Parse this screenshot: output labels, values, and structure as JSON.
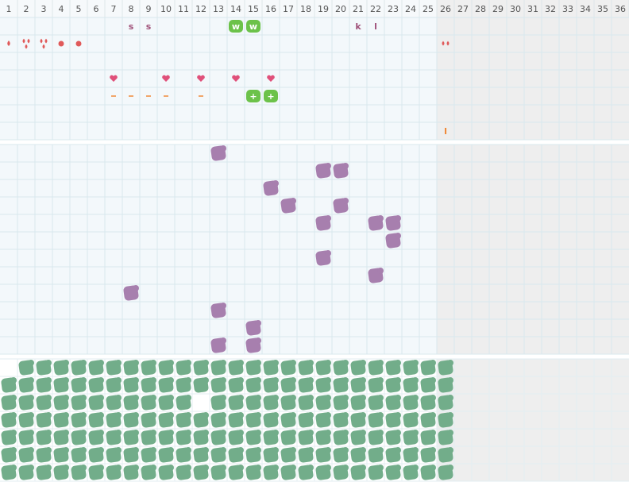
{
  "columns": [
    1,
    2,
    3,
    4,
    5,
    6,
    7,
    8,
    9,
    10,
    11,
    12,
    13,
    14,
    15,
    16,
    17,
    18,
    19,
    20,
    21,
    22,
    23,
    24,
    25,
    26,
    27,
    28,
    29,
    30,
    31,
    32,
    33,
    34,
    35,
    36
  ],
  "section1": {
    "rows": [
      [
        {
          "column": 8,
          "text": "s"
        },
        {
          "column": 9,
          "text": "s"
        },
        {
          "column": 14,
          "text": "w",
          "badge": true
        },
        {
          "column": 15,
          "text": "w",
          "badge": true
        },
        {
          "column": 21,
          "text": "k"
        },
        {
          "column": 22,
          "text": "l"
        }
      ],
      [
        {
          "column": 1,
          "icon": "drop",
          "count": 1
        },
        {
          "column": 2,
          "icon": "drop",
          "count": 3
        },
        {
          "column": 3,
          "icon": "drop",
          "count": 3
        },
        {
          "column": 4,
          "icon": "dot",
          "count": 1
        },
        {
          "column": 5,
          "icon": "dot",
          "count": 1
        },
        {
          "column": 26,
          "icon": "drop",
          "count": 2
        }
      ],
      [],
      [
        {
          "column": 7,
          "icon": "heart",
          "count": 1
        },
        {
          "column": 10,
          "icon": "heart",
          "count": 1
        },
        {
          "column": 12,
          "icon": "heart",
          "count": 1
        },
        {
          "column": 14,
          "icon": "heart",
          "count": 1
        },
        {
          "column": 16,
          "icon": "heart",
          "count": 1
        }
      ],
      [
        {
          "column": 7,
          "icon": "dash",
          "count": 1
        },
        {
          "column": 8,
          "icon": "dash",
          "count": 1
        },
        {
          "column": 9,
          "icon": "dash",
          "count": 1
        },
        {
          "column": 10,
          "icon": "dash",
          "count": 1
        },
        {
          "column": 12,
          "icon": "dash",
          "count": 1
        },
        {
          "column": 15,
          "text": "+",
          "badge": true
        },
        {
          "column": 16,
          "text": "+",
          "badge": true
        }
      ],
      [],
      [
        {
          "column": 26,
          "text": "I"
        }
      ]
    ]
  },
  "section2": {
    "rows": [
      [
        13
      ],
      [
        19,
        20
      ],
      [
        16
      ],
      [
        17,
        20
      ],
      [
        19,
        22,
        23
      ],
      [
        23
      ],
      [
        19
      ],
      [
        22
      ],
      [
        8
      ],
      [
        13
      ],
      [
        15
      ],
      [
        13,
        15
      ]
    ]
  },
  "section3": {
    "rows": [
      [
        2,
        3,
        4,
        5,
        6,
        7,
        8,
        9,
        10,
        11,
        12,
        13,
        14,
        15,
        16,
        17,
        18,
        19,
        20,
        21,
        22,
        23,
        24,
        25,
        26
      ],
      [
        1,
        2,
        3,
        4,
        5,
        6,
        7,
        8,
        9,
        10,
        11,
        12,
        13,
        14,
        15,
        16,
        17,
        18,
        19,
        20,
        21,
        22,
        23,
        24,
        25,
        26
      ],
      [
        1,
        2,
        3,
        4,
        5,
        6,
        7,
        8,
        9,
        10,
        11,
        13,
        14,
        15,
        16,
        17,
        18,
        19,
        20,
        21,
        22,
        23,
        24,
        25,
        26
      ],
      [
        1,
        2,
        3,
        4,
        5,
        6,
        7,
        8,
        9,
        10,
        11,
        12,
        13,
        14,
        15,
        16,
        17,
        18,
        19,
        20,
        21,
        22,
        23,
        24,
        25,
        26
      ],
      [
        1,
        2,
        3,
        4,
        5,
        6,
        7,
        8,
        9,
        10,
        11,
        12,
        13,
        14,
        15,
        16,
        17,
        18,
        19,
        20,
        21,
        22,
        23,
        24,
        25,
        26
      ],
      [
        1,
        2,
        3,
        4,
        5,
        6,
        7,
        8,
        9,
        10,
        11,
        12,
        13,
        14,
        15,
        16,
        17,
        18,
        19,
        20,
        21,
        22,
        23,
        24,
        25,
        26
      ],
      [
        1,
        2,
        3,
        4,
        5,
        6,
        7,
        8,
        9,
        10,
        11,
        12,
        13,
        14,
        15,
        16,
        17,
        18,
        19,
        20,
        21,
        22,
        23,
        24,
        25,
        26
      ]
    ]
  }
}
